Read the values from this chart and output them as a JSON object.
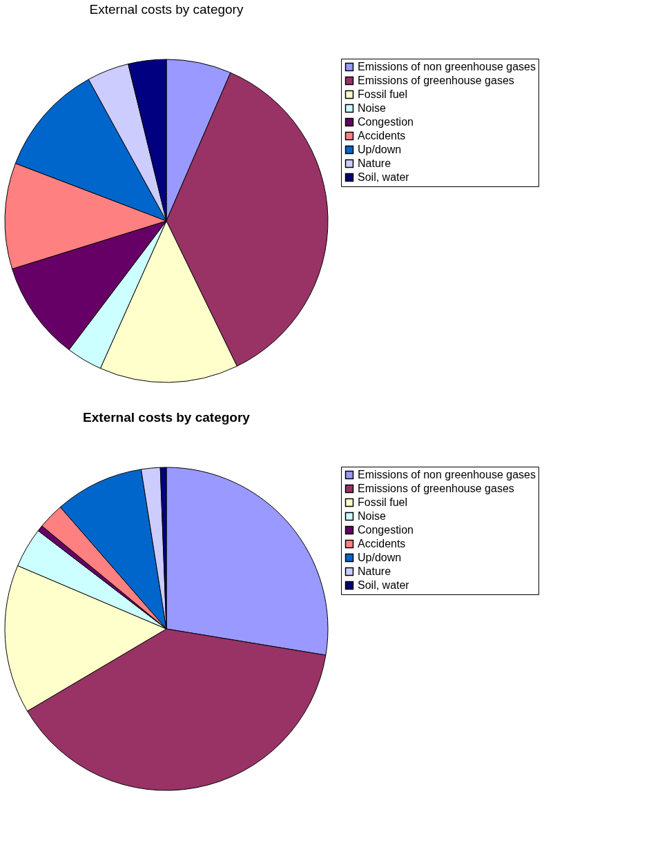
{
  "chart_data": [
    {
      "type": "pie",
      "title": "External costs by category",
      "legend": "right",
      "categories": [
        "Emissions of non greenhouse gases",
        "Emissions of greenhouse gases",
        "Fossil fuel",
        "Noise",
        "Congestion",
        "Accidents",
        "Up/down",
        "Nature",
        "Soil, water"
      ],
      "values": [
        6.5,
        36.3,
        13.9,
        3.6,
        9.9,
        10.6,
        11.2,
        4.2,
        3.8
      ],
      "colors": [
        "#9999ff",
        "#993366",
        "#ffffcc",
        "#ccffff",
        "#660066",
        "#ff8080",
        "#0066cc",
        "#ccccff",
        "#000080"
      ]
    },
    {
      "type": "pie",
      "title": "External costs by category",
      "legend": "right",
      "categories": [
        "Emissions of non greenhouse gases",
        "Emissions of greenhouse gases",
        "Fossil fuel",
        "Noise",
        "Congestion",
        "Accidents",
        "Up/down",
        "Nature",
        "Soil, water"
      ],
      "values": [
        27.6,
        38.9,
        14.9,
        4.0,
        0.6,
        2.6,
        8.9,
        1.9,
        0.6
      ],
      "colors": [
        "#9999ff",
        "#993366",
        "#ffffcc",
        "#ccffff",
        "#660066",
        "#ff8080",
        "#0066cc",
        "#ccccff",
        "#000080"
      ]
    }
  ]
}
